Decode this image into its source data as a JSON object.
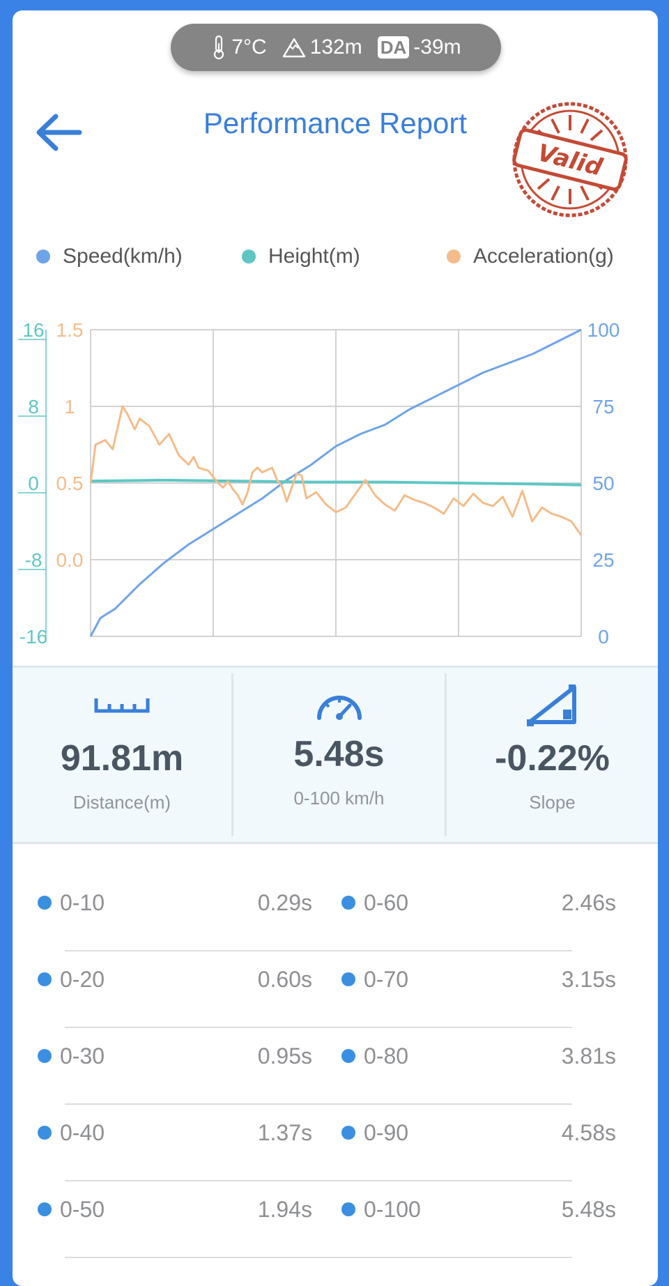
{
  "status_pill": {
    "temperature": "7°C",
    "altitude": "132m",
    "da_label": "DA",
    "da_value": "-39m"
  },
  "header": {
    "title": "Performance Report",
    "stamp_text": "Valid"
  },
  "legend": [
    {
      "label": "Speed(km/h)",
      "color": "#6ea4e6"
    },
    {
      "label": "Height(m)",
      "color": "#5ec7c4"
    },
    {
      "label": "Acceleration(g)",
      "color": "#f4bc8a"
    }
  ],
  "chart_data": {
    "type": "line",
    "x_divisions": 4,
    "left_axis_height": {
      "ticks": [
        "16",
        "8",
        "0",
        "-8",
        "-16"
      ],
      "range": [
        -16,
        16
      ],
      "color": "#5ec7c4"
    },
    "left_axis_accel": {
      "ticks": [
        "1.5",
        "1",
        "0.5",
        "0.0"
      ],
      "range": [
        -0.5,
        1.5
      ],
      "color": "#f4bc8a"
    },
    "right_axis_speed": {
      "ticks": [
        "100",
        "75",
        "50",
        "25",
        "0"
      ],
      "range": [
        0,
        100
      ],
      "color": "#6ea4e6"
    },
    "series": [
      {
        "name": "Speed(km/h)",
        "color": "#6ea4e6",
        "axis": "speed",
        "x": [
          0,
          0.02,
          0.05,
          0.1,
          0.15,
          0.2,
          0.25,
          0.3,
          0.35,
          0.4,
          0.45,
          0.5,
          0.55,
          0.6,
          0.65,
          0.7,
          0.75,
          0.8,
          0.85,
          0.9,
          0.95,
          1.0
        ],
        "values": [
          0,
          6,
          9,
          17,
          24,
          30,
          35,
          40,
          45,
          51,
          56,
          62,
          66,
          69,
          74,
          78,
          82,
          86,
          89,
          92,
          96,
          100
        ]
      },
      {
        "name": "Height(m)",
        "color": "#5ec7c4",
        "axis": "height",
        "x": [
          0,
          0.15,
          0.3,
          0.45,
          0.6,
          0.75,
          0.9,
          1.0
        ],
        "values": [
          0.2,
          0.3,
          0.2,
          0.1,
          0.1,
          0.0,
          -0.1,
          -0.2
        ]
      },
      {
        "name": "Acceleration(g)",
        "color": "#f4bc8a",
        "axis": "accel",
        "x": [
          0,
          0.01,
          0.03,
          0.045,
          0.055,
          0.065,
          0.075,
          0.09,
          0.1,
          0.12,
          0.14,
          0.16,
          0.18,
          0.2,
          0.21,
          0.22,
          0.24,
          0.26,
          0.27,
          0.28,
          0.29,
          0.3,
          0.31,
          0.32,
          0.33,
          0.34,
          0.35,
          0.37,
          0.38,
          0.39,
          0.4,
          0.42,
          0.43,
          0.44,
          0.46,
          0.48,
          0.5,
          0.52,
          0.54,
          0.56,
          0.58,
          0.6,
          0.62,
          0.64,
          0.66,
          0.68,
          0.7,
          0.72,
          0.74,
          0.76,
          0.78,
          0.8,
          0.82,
          0.84,
          0.86,
          0.88,
          0.9,
          0.92,
          0.94,
          0.96,
          0.98,
          1.0
        ],
        "values": [
          0.5,
          0.75,
          0.78,
          0.72,
          0.86,
          1.0,
          0.95,
          0.85,
          0.92,
          0.87,
          0.75,
          0.82,
          0.68,
          0.62,
          0.67,
          0.6,
          0.58,
          0.5,
          0.47,
          0.51,
          0.46,
          0.42,
          0.36,
          0.44,
          0.57,
          0.6,
          0.57,
          0.6,
          0.52,
          0.48,
          0.38,
          0.56,
          0.55,
          0.4,
          0.44,
          0.36,
          0.31,
          0.34,
          0.43,
          0.52,
          0.42,
          0.36,
          0.32,
          0.42,
          0.39,
          0.37,
          0.34,
          0.3,
          0.4,
          0.35,
          0.43,
          0.37,
          0.35,
          0.41,
          0.28,
          0.45,
          0.25,
          0.34,
          0.3,
          0.28,
          0.25,
          0.16
        ]
      }
    ]
  },
  "stats": [
    {
      "icon": "ruler-icon",
      "value": "91.81m",
      "label": "Distance(m)"
    },
    {
      "icon": "speedometer-icon",
      "value": "5.48s",
      "label": "0-100 km/h"
    },
    {
      "icon": "slope-icon",
      "value": "-0.22%",
      "label": "Slope"
    }
  ],
  "splits": [
    [
      {
        "range": "0-10",
        "time": "0.29s"
      },
      {
        "range": "0-60",
        "time": "2.46s"
      }
    ],
    [
      {
        "range": "0-20",
        "time": "0.60s"
      },
      {
        "range": "0-70",
        "time": "3.15s"
      }
    ],
    [
      {
        "range": "0-30",
        "time": "0.95s"
      },
      {
        "range": "0-80",
        "time": "3.81s"
      }
    ],
    [
      {
        "range": "0-40",
        "time": "1.37s"
      },
      {
        "range": "0-90",
        "time": "4.58s"
      }
    ],
    [
      {
        "range": "0-50",
        "time": "1.94s"
      },
      {
        "range": "0-100",
        "time": "5.48s"
      }
    ]
  ]
}
